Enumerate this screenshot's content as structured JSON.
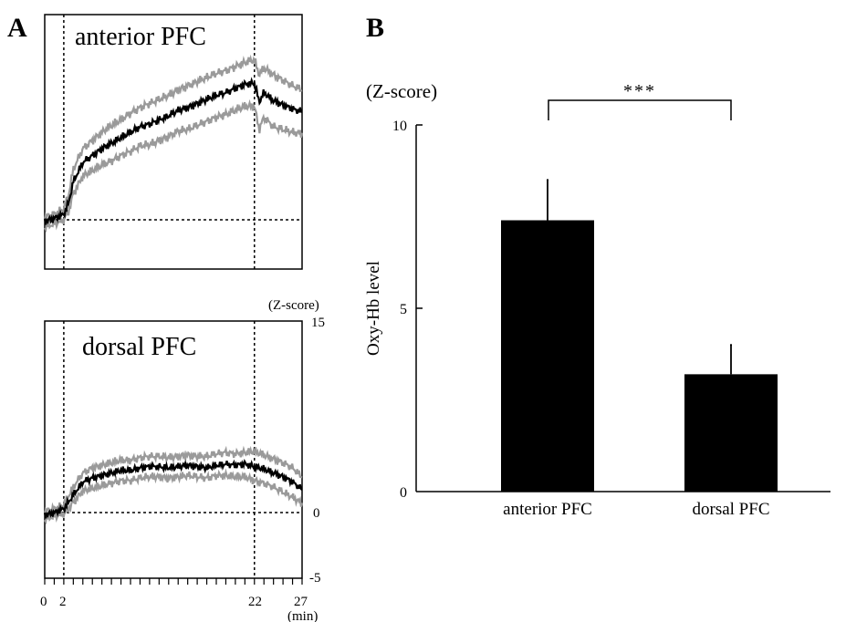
{
  "panel_a": {
    "letter": "A",
    "right_axis_unit": "(Z-score)",
    "x_unit": "(min)",
    "y_ticks": [
      "15",
      "0",
      "-5"
    ],
    "x_ticks": [
      "0",
      "2",
      "22",
      "27"
    ]
  },
  "panel_b": {
    "letter": "B",
    "unit": "(Z-score)",
    "ylabel": "Oxy-Hb level",
    "y_ticks": [
      "10",
      "5",
      "0"
    ],
    "significance": "***"
  },
  "colors": {
    "mean_line": "#000000",
    "sd_lines": "#9a9a9a",
    "bars": "#000000"
  },
  "chart_data": [
    {
      "type": "line",
      "title": "anterior PFC",
      "x_unit": "min",
      "y_unit": "Z-score",
      "xlim": [
        0,
        27
      ],
      "ylim": [
        -5,
        15
      ],
      "vlines": [
        2,
        22
      ],
      "hline": 0,
      "x": [
        0,
        1,
        2,
        2.5,
        3,
        4,
        5,
        6,
        7,
        8,
        9,
        10,
        11,
        12,
        13,
        14,
        15,
        16,
        17,
        18,
        19,
        20,
        21,
        22,
        22.5,
        23,
        24,
        25,
        26,
        27
      ],
      "mean": [
        -0.1,
        0.1,
        0.4,
        1.2,
        2.8,
        4.2,
        4.7,
        5.2,
        5.6,
        6.0,
        6.4,
        6.8,
        7.0,
        7.3,
        7.6,
        8.0,
        8.2,
        8.5,
        8.8,
        9.1,
        9.3,
        9.6,
        9.9,
        10.0,
        8.6,
        9.3,
        8.7,
        8.4,
        8.1,
        7.9
      ],
      "upper": [
        0.2,
        0.4,
        0.8,
        1.8,
        3.7,
        5.2,
        5.8,
        6.4,
        6.9,
        7.3,
        7.8,
        8.2,
        8.5,
        8.8,
        9.1,
        9.5,
        9.8,
        10.1,
        10.4,
        10.7,
        10.9,
        11.2,
        11.5,
        11.7,
        10.6,
        11.1,
        10.6,
        10.2,
        9.8,
        9.5
      ],
      "lower": [
        -0.5,
        -0.3,
        0.0,
        0.6,
        1.9,
        3.2,
        3.6,
        4.0,
        4.3,
        4.7,
        5.0,
        5.4,
        5.5,
        5.8,
        6.1,
        6.5,
        6.6,
        6.9,
        7.2,
        7.5,
        7.7,
        8.0,
        8.3,
        8.3,
        6.6,
        7.5,
        6.8,
        6.6,
        6.4,
        6.3
      ]
    },
    {
      "type": "line",
      "title": "dorsal PFC",
      "x_unit": "min",
      "y_unit": "Z-score",
      "xlim": [
        0,
        27
      ],
      "ylim": [
        -5,
        15
      ],
      "vlines": [
        2,
        22
      ],
      "hline": 0,
      "x": [
        0,
        1,
        2,
        2.5,
        3,
        4,
        5,
        6,
        7,
        8,
        9,
        10,
        11,
        12,
        13,
        14,
        15,
        16,
        17,
        18,
        19,
        20,
        21,
        22,
        23,
        24,
        25,
        26,
        27
      ],
      "mean": [
        -0.2,
        0.0,
        0.3,
        0.8,
        1.4,
        2.4,
        2.7,
        2.9,
        3.1,
        3.3,
        3.3,
        3.5,
        3.6,
        3.6,
        3.5,
        3.6,
        3.7,
        3.6,
        3.5,
        3.7,
        3.8,
        3.7,
        3.8,
        3.6,
        3.4,
        3.1,
        2.8,
        2.4,
        1.8
      ],
      "upper": [
        0.1,
        0.3,
        0.6,
        1.3,
        2.0,
        3.1,
        3.5,
        3.7,
        3.9,
        4.1,
        4.1,
        4.3,
        4.4,
        4.4,
        4.3,
        4.4,
        4.5,
        4.4,
        4.4,
        4.6,
        4.7,
        4.6,
        4.7,
        4.8,
        4.5,
        4.2,
        3.9,
        3.5,
        2.8
      ],
      "lower": [
        -0.5,
        -0.3,
        -0.1,
        0.3,
        0.8,
        1.7,
        1.9,
        2.1,
        2.3,
        2.5,
        2.5,
        2.7,
        2.8,
        2.8,
        2.7,
        2.8,
        2.9,
        2.8,
        2.7,
        2.9,
        2.9,
        2.8,
        2.8,
        2.5,
        2.3,
        2.0,
        1.6,
        1.2,
        0.7
      ]
    },
    {
      "type": "bar",
      "categories": [
        "anterior PFC",
        "dorsal PFC"
      ],
      "values": [
        7.4,
        3.2
      ],
      "errors": [
        1.1,
        0.8
      ],
      "ylabel": "Oxy-Hb level",
      "y_unit": "Z-score",
      "ylim": [
        0,
        10
      ],
      "significance": "***"
    }
  ]
}
